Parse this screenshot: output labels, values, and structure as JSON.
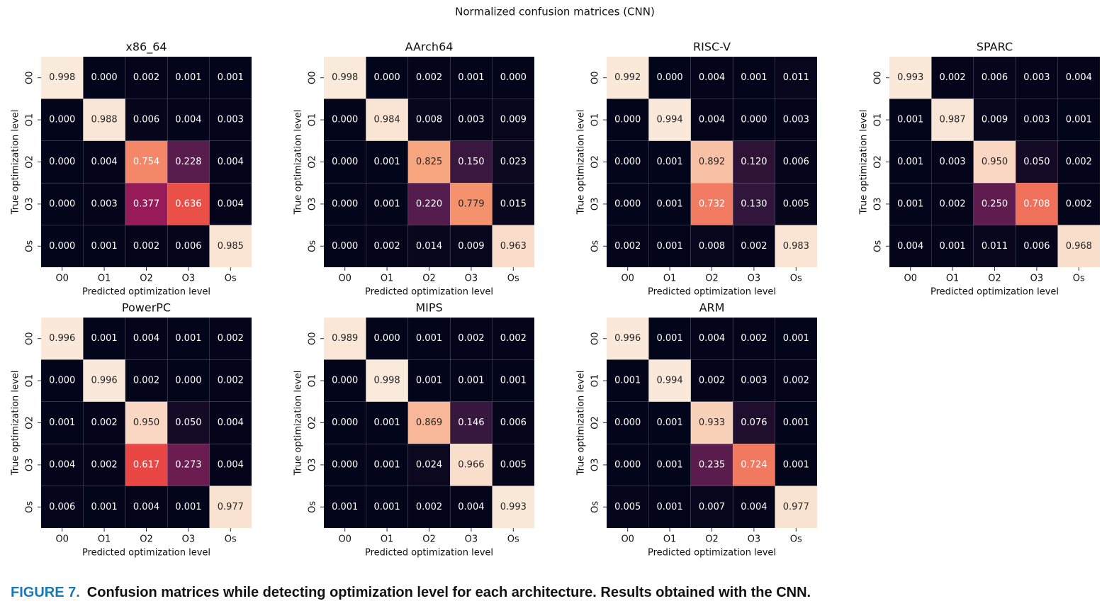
{
  "title": "Normalized confusion matrices (CNN)",
  "caption": {
    "label": "FIGURE 7.",
    "text": "Confusion matrices while detecting optimization level for each architecture. Results obtained with the CNN."
  },
  "chart_data": [
    {
      "type": "heatmap",
      "title": "x86_64",
      "x_label": "Predicted optimization level",
      "y_label": "True optimization level",
      "colormap": "rocket",
      "clim": [
        0,
        1
      ],
      "x_categories": [
        "O0",
        "O1",
        "O2",
        "O3",
        "Os"
      ],
      "y_categories": [
        "O0",
        "O1",
        "O2",
        "O3",
        "Os"
      ],
      "values": [
        [
          0.998,
          0,
          0.002,
          0.001,
          0.001
        ],
        [
          0,
          0.988,
          0.006,
          0.004,
          0.003
        ],
        [
          0,
          0.004,
          0.754,
          0.228,
          0.004
        ],
        [
          0,
          0.003,
          0.377,
          0.636,
          0.004
        ],
        [
          0,
          0.001,
          0.002,
          0.006,
          0.985
        ]
      ],
      "value_labels": [
        [
          "0.998",
          "0.000",
          "0.002",
          "0.001",
          "0.001"
        ],
        [
          "0.000",
          "0.988",
          "0.006",
          "0.004",
          "0.003"
        ],
        [
          "0.000",
          "0.004",
          "0.754",
          "0.228",
          "0.004"
        ],
        [
          "0.000",
          "0.003",
          "0.377",
          "0.636",
          "0.004"
        ],
        [
          "0.000",
          "0.001",
          "0.002",
          "0.006",
          "0.985"
        ]
      ]
    },
    {
      "type": "heatmap",
      "title": "AArch64",
      "x_label": "Predicted optimization level",
      "y_label": "True optimization level",
      "colormap": "rocket",
      "clim": [
        0,
        1
      ],
      "x_categories": [
        "O0",
        "O1",
        "O2",
        "O3",
        "Os"
      ],
      "y_categories": [
        "O0",
        "O1",
        "O2",
        "O3",
        "Os"
      ],
      "values": [
        [
          0.998,
          0,
          0.002,
          0.001,
          0
        ],
        [
          0,
          0.984,
          0.008,
          0.003,
          0.009
        ],
        [
          0,
          0.001,
          0.825,
          0.15,
          0.023
        ],
        [
          0,
          0.001,
          0.22,
          0.779,
          0.015
        ],
        [
          0,
          0.002,
          0.014,
          0.009,
          0.963
        ]
      ],
      "value_labels": [
        [
          "0.998",
          "0.000",
          "0.002",
          "0.001",
          "0.000"
        ],
        [
          "0.000",
          "0.984",
          "0.008",
          "0.003",
          "0.009"
        ],
        [
          "0.000",
          "0.001",
          "0.825",
          "0.150",
          "0.023"
        ],
        [
          "0.000",
          "0.001",
          "0.220",
          "0.779",
          "0.015"
        ],
        [
          "0.000",
          "0.002",
          "0.014",
          "0.009",
          "0.963"
        ]
      ]
    },
    {
      "type": "heatmap",
      "title": "RISC-V",
      "x_label": "Predicted optimization level",
      "y_label": "True optimization level",
      "colormap": "rocket",
      "clim": [
        0,
        1
      ],
      "x_categories": [
        "O0",
        "O1",
        "O2",
        "O3",
        "Os"
      ],
      "y_categories": [
        "O0",
        "O1",
        "O2",
        "O3",
        "Os"
      ],
      "values": [
        [
          0.992,
          0,
          0.004,
          0.001,
          0.011
        ],
        [
          0,
          0.994,
          0.004,
          0,
          0.003
        ],
        [
          0,
          0.001,
          0.892,
          0.12,
          0.006
        ],
        [
          0,
          0.001,
          0.732,
          0.13,
          0.005
        ],
        [
          0.002,
          0.001,
          0.008,
          0.002,
          0.983
        ]
      ],
      "value_labels": [
        [
          "0.992",
          "0.000",
          "0.004",
          "0.001",
          "0.011"
        ],
        [
          "0.000",
          "0.994",
          "0.004",
          "0.000",
          "0.003"
        ],
        [
          "0.000",
          "0.001",
          "0.892",
          "0.120",
          "0.006"
        ],
        [
          "0.000",
          "0.001",
          "0.732",
          "0.130",
          "0.005"
        ],
        [
          "0.002",
          "0.001",
          "0.008",
          "0.002",
          "0.983"
        ]
      ]
    },
    {
      "type": "heatmap",
      "title": "SPARC",
      "x_label": "Predicted optimization level",
      "y_label": "True optimization level",
      "colormap": "rocket",
      "clim": [
        0,
        1
      ],
      "x_categories": [
        "O0",
        "O1",
        "O2",
        "O3",
        "Os"
      ],
      "y_categories": [
        "O0",
        "O1",
        "O2",
        "O3",
        "Os"
      ],
      "values": [
        [
          0.993,
          0.002,
          0.006,
          0.003,
          0.004
        ],
        [
          0.001,
          0.987,
          0.009,
          0.003,
          0.001
        ],
        [
          0.001,
          0.003,
          0.95,
          0.05,
          0.002
        ],
        [
          0.001,
          0.002,
          0.25,
          0.708,
          0.002
        ],
        [
          0.004,
          0.001,
          0.011,
          0.006,
          0.968
        ]
      ],
      "value_labels": [
        [
          "0.993",
          "0.002",
          "0.006",
          "0.003",
          "0.004"
        ],
        [
          "0.001",
          "0.987",
          "0.009",
          "0.003",
          "0.001"
        ],
        [
          "0.001",
          "0.003",
          "0.950",
          "0.050",
          "0.002"
        ],
        [
          "0.001",
          "0.002",
          "0.250",
          "0.708",
          "0.002"
        ],
        [
          "0.004",
          "0.001",
          "0.011",
          "0.006",
          "0.968"
        ]
      ]
    },
    {
      "type": "heatmap",
      "title": "PowerPC",
      "x_label": "Predicted optimization level",
      "y_label": "True optimization level",
      "colormap": "rocket",
      "clim": [
        0,
        1
      ],
      "x_categories": [
        "O0",
        "O1",
        "O2",
        "O3",
        "Os"
      ],
      "y_categories": [
        "O0",
        "O1",
        "O2",
        "O3",
        "Os"
      ],
      "values": [
        [
          0.996,
          0.001,
          0.004,
          0.001,
          0.002
        ],
        [
          0,
          0.996,
          0.002,
          0,
          0.002
        ],
        [
          0.001,
          0.002,
          0.95,
          0.05,
          0.004
        ],
        [
          0.004,
          0.002,
          0.617,
          0.273,
          0.004
        ],
        [
          0.006,
          0.001,
          0.004,
          0.001,
          0.977
        ]
      ],
      "value_labels": [
        [
          "0.996",
          "0.001",
          "0.004",
          "0.001",
          "0.002"
        ],
        [
          "0.000",
          "0.996",
          "0.002",
          "0.000",
          "0.002"
        ],
        [
          "0.001",
          "0.002",
          "0.950",
          "0.050",
          "0.004"
        ],
        [
          "0.004",
          "0.002",
          "0.617",
          "0.273",
          "0.004"
        ],
        [
          "0.006",
          "0.001",
          "0.004",
          "0.001",
          "0.977"
        ]
      ]
    },
    {
      "type": "heatmap",
      "title": "MIPS",
      "x_label": "Predicted optimization level",
      "y_label": "True optimization level",
      "colormap": "rocket",
      "clim": [
        0,
        1
      ],
      "x_categories": [
        "O0",
        "O1",
        "O2",
        "O3",
        "Os"
      ],
      "y_categories": [
        "O0",
        "O1",
        "O2",
        "O3",
        "Os"
      ],
      "values": [
        [
          0.989,
          0,
          0.001,
          0.002,
          0.002
        ],
        [
          0,
          0.998,
          0.001,
          0.001,
          0.001
        ],
        [
          0,
          0.001,
          0.869,
          0.146,
          0.006
        ],
        [
          0,
          0.001,
          0.024,
          0.966,
          0.005
        ],
        [
          0.001,
          0.001,
          0.002,
          0.004,
          0.993
        ]
      ],
      "value_labels": [
        [
          "0.989",
          "0.000",
          "0.001",
          "0.002",
          "0.002"
        ],
        [
          "0.000",
          "0.998",
          "0.001",
          "0.001",
          "0.001"
        ],
        [
          "0.000",
          "0.001",
          "0.869",
          "0.146",
          "0.006"
        ],
        [
          "0.000",
          "0.001",
          "0.024",
          "0.966",
          "0.005"
        ],
        [
          "0.001",
          "0.001",
          "0.002",
          "0.004",
          "0.993"
        ]
      ]
    },
    {
      "type": "heatmap",
      "title": "ARM",
      "x_label": "Predicted optimization level",
      "y_label": "True optimization level",
      "colormap": "rocket",
      "clim": [
        0,
        1
      ],
      "x_categories": [
        "O0",
        "O1",
        "O2",
        "O3",
        "Os"
      ],
      "y_categories": [
        "O0",
        "O1",
        "O2",
        "O3",
        "Os"
      ],
      "values": [
        [
          0.996,
          0.001,
          0.004,
          0.002,
          0.001
        ],
        [
          0.001,
          0.994,
          0.002,
          0.003,
          0.002
        ],
        [
          0,
          0.001,
          0.933,
          0.076,
          0.001
        ],
        [
          0,
          0.001,
          0.235,
          0.724,
          0.001
        ],
        [
          0.005,
          0.001,
          0.007,
          0.004,
          0.977
        ]
      ],
      "value_labels": [
        [
          "0.996",
          "0.001",
          "0.004",
          "0.002",
          "0.001"
        ],
        [
          "0.001",
          "0.994",
          "0.002",
          "0.003",
          "0.002"
        ],
        [
          "0.000",
          "0.001",
          "0.933",
          "0.076",
          "0.001"
        ],
        [
          "0.000",
          "0.001",
          "0.235",
          "0.724",
          "0.001"
        ],
        [
          "0.005",
          "0.001",
          "0.007",
          "0.004",
          "0.977"
        ]
      ]
    }
  ]
}
